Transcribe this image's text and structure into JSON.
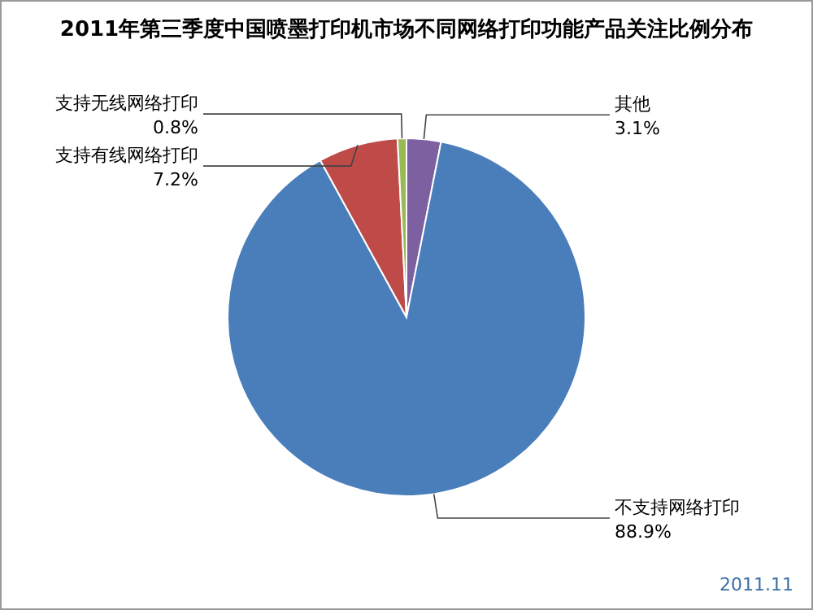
{
  "chart_data": {
    "type": "pie",
    "title": "2011年第三季度中国喷墨打印机市场不同网络打印功能产品关注比例分布",
    "categories": [
      "其他",
      "不支持网络打印",
      "支持有线网络打印",
      "支持无线网络打印"
    ],
    "values": [
      3.1,
      88.9,
      7.2,
      0.8
    ],
    "value_labels": [
      "3.1%",
      "88.9%",
      "7.2%",
      "0.8%"
    ],
    "colors": [
      "#7d60a0",
      "#4a7ebb",
      "#be4b48",
      "#98b954"
    ],
    "annotations": [
      "2011.11"
    ]
  }
}
